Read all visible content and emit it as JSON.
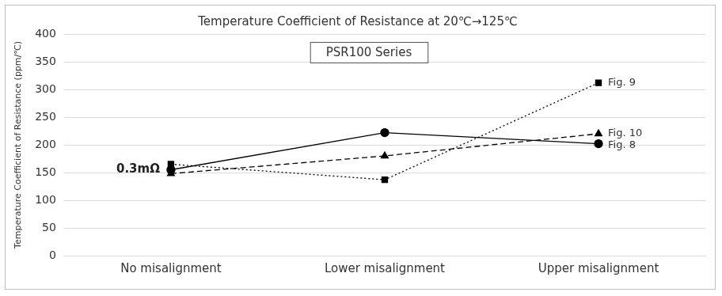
{
  "chart_data": {
    "type": "line",
    "title": "Temperature Coefficient of Resistance at 20℃→125℃",
    "y_label": "Temperature Coefficient of Resistance (ppm/℃)",
    "annotations": [
      "PSR100 Series",
      "0.3mΩ"
    ],
    "categories": [
      "No misalignment",
      "Lower misalignment",
      "Upper misalignment"
    ],
    "series": [
      {
        "name": "Fig. 8",
        "color": "#000000",
        "marker": "circle",
        "line_style": "solid",
        "values": [
          155,
          222,
          202
        ]
      },
      {
        "name": "Fig. 9",
        "color": "#000000",
        "marker": "square",
        "line_style": "dotted",
        "values": [
          165,
          137,
          312
        ]
      },
      {
        "name": "Fig. 10",
        "color": "#000000",
        "marker": "triangle",
        "line_style": "dashed",
        "values": [
          148,
          180,
          220
        ]
      }
    ],
    "ylim": [
      0,
      400
    ],
    "yticks": [
      0,
      50,
      100,
      150,
      200,
      250,
      300,
      350,
      400
    ],
    "grid": true
  }
}
